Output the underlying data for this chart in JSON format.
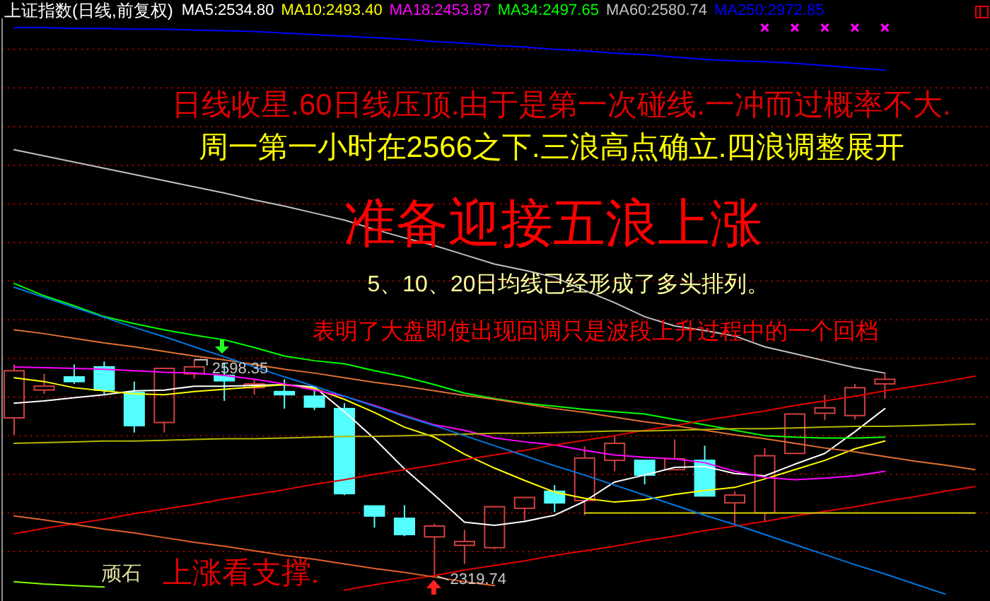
{
  "chart_data": {
    "type": "candlestick",
    "title": "上证指数(日线,前复权)",
    "categories": [
      null,
      null,
      null,
      null,
      null,
      null,
      null,
      null,
      null,
      null,
      null,
      null,
      null,
      null,
      null,
      null,
      null,
      null,
      null,
      null,
      null,
      null,
      null,
      null,
      null,
      null,
      null,
      null,
      null,
      null,
      null,
      null,
      null
    ],
    "ohlc": [
      [
        2523,
        2592,
        2501,
        2584
      ],
      [
        2559,
        2580,
        2554,
        2564
      ],
      [
        2576,
        2592,
        2567,
        2570
      ],
      [
        2589,
        2596,
        2554,
        2559
      ],
      [
        2556,
        2570,
        2504,
        2513
      ],
      [
        2517,
        2587,
        2504,
        2587
      ],
      [
        2580,
        2598.35,
        2574,
        2589
      ],
      [
        2578,
        2594,
        2545,
        2571
      ],
      [
        2562,
        2573,
        2553,
        2567
      ],
      [
        2557,
        2573,
        2535,
        2553
      ],
      [
        2551,
        2561,
        2533,
        2537
      ],
      [
        2535,
        2542,
        2423,
        2425
      ],
      [
        2409,
        2409,
        2381,
        2396
      ],
      [
        2393,
        2410,
        2370,
        2372
      ],
      [
        2369,
        2386,
        2319.74,
        2383
      ],
      [
        2358,
        2378,
        2334,
        2363
      ],
      [
        2355,
        2409,
        2353,
        2408
      ],
      [
        2406,
        2420,
        2390,
        2420
      ],
      [
        2428,
        2436,
        2401,
        2413
      ],
      [
        2416,
        2486,
        2397,
        2471
      ],
      [
        2468,
        2500,
        2454,
        2490
      ],
      [
        2468,
        2468,
        2437,
        2449
      ],
      [
        2456,
        2495,
        2456,
        2470
      ],
      [
        2468,
        2487,
        2422,
        2422
      ],
      [
        2413,
        2428,
        2386,
        2423
      ],
      [
        2400,
        2484,
        2389,
        2474
      ],
      [
        2477,
        2528,
        2477,
        2528
      ],
      [
        2529,
        2553,
        2520,
        2536
      ],
      [
        2526,
        2567,
        2521,
        2562
      ],
      [
        2567,
        2580,
        2548,
        2573
      ],
      null,
      null,
      null
    ],
    "colors": [
      "#d04040",
      "#d04040",
      "#54ffff",
      "#54ffff",
      "#54ffff",
      "#d04040",
      "#d04040",
      "#54ffff",
      "#d04040",
      "#54ffff",
      "#54ffff",
      "#54ffff",
      "#54ffff",
      "#54ffff",
      "#d04040",
      "#d04040",
      "#d04040",
      "#d04040",
      "#54ffff",
      "#d04040",
      "#d04040",
      "#54ffff",
      "#d04040",
      "#54ffff",
      "#d04040",
      "#d04040",
      "#d04040",
      "#d04040",
      "#d04040",
      "#d04040",
      null,
      null,
      null
    ],
    "series": [
      {
        "name": "MA5:2534.80",
        "type": "line",
        "color": "#ffffff",
        "values": [
          2542,
          2545,
          2549,
          2553,
          2558,
          2559,
          2564,
          2564,
          2565,
          2566,
          2563,
          2531,
          2496,
          2457,
          2423,
          2388,
          2384,
          2389,
          2397,
          2415,
          2440,
          2449,
          2459,
          2460,
          2451,
          2448,
          2463,
          2477,
          2505,
          2535,
          null,
          null,
          null
        ]
      },
      {
        "name": "MA10:2493.40",
        "type": "line",
        "color": "#ffff00",
        "values": [
          2575,
          2570,
          2562,
          2558,
          2554,
          2553,
          2557,
          2560,
          2563,
          2566,
          2561,
          2547,
          2530,
          2511,
          2498,
          2476,
          2458,
          2442,
          2427,
          2419,
          2414,
          2417,
          2424,
          2429,
          2433,
          2444,
          2456,
          2468,
          2483,
          2493,
          null,
          null,
          null
        ]
      },
      {
        "name": "MA18:2453.87",
        "type": "line",
        "color": "#ff00ff",
        "values": [
          2589,
          2588,
          2587,
          2586,
          2584,
          2582,
          2581,
          2578,
          2573,
          2567,
          2559,
          2551,
          2539,
          2526,
          2514,
          2507,
          2497,
          2492,
          2488,
          2481,
          2475,
          2472,
          2470,
          2465,
          2454,
          2446,
          2443,
          2445,
          2448,
          2454,
          null,
          null,
          null
        ]
      },
      {
        "name": "MA34:2497.65",
        "type": "line",
        "color": "#00ff00",
        "values": [
          2697,
          2681,
          2668,
          2654,
          2645,
          2637,
          2630,
          2624,
          2614,
          2603,
          2597,
          2593,
          2584,
          2576,
          2566,
          2555,
          2548,
          2542,
          2538,
          2534,
          2531,
          2528,
          2521,
          2514,
          2507,
          2500,
          2498,
          2497,
          2497,
          2498,
          null,
          null,
          null
        ]
      },
      {
        "name": "MA60:2580.74",
        "type": "line",
        "color": "#c0c0c0",
        "values": [
          2870,
          2862,
          2854,
          2846,
          2838,
          2830,
          2822,
          2814,
          2805,
          2797,
          2788,
          2779,
          2767,
          2756,
          2746,
          2734,
          2722,
          2714,
          2705,
          2688,
          2672,
          2654,
          2642,
          2636,
          2629,
          2615,
          2606,
          2597,
          2588,
          2581,
          null,
          null,
          null
        ]
      },
      {
        "name": "MA250:2972.85",
        "type": "line",
        "color": "#0000ff",
        "values": [
          3028,
          3028,
          3027,
          3027,
          3026,
          3026,
          3025,
          3024,
          3023,
          3021,
          3019,
          3017,
          3015,
          3013,
          3010,
          3008,
          3005,
          3003,
          3000,
          2998,
          2995,
          2993,
          2990,
          2987,
          2985,
          2984,
          2982,
          2979,
          2976,
          2973,
          null,
          null,
          null
        ]
      },
      {
        "type": "scatter",
        "color": "#ff00ff",
        "marker": "cross",
        "values": [
          null,
          null,
          null,
          null,
          null,
          null,
          null,
          null,
          null,
          null,
          null,
          null,
          null,
          null,
          null,
          null,
          null,
          null,
          null,
          null,
          null,
          null,
          null,
          null,
          null,
          3028,
          3028,
          3028,
          3028,
          3028,
          null,
          null,
          null
        ]
      },
      {
        "type": "line",
        "color": "#e00000",
        "values": [
          2373,
          2380,
          2386,
          2392,
          2399,
          2405,
          2411,
          2418,
          2424,
          2430,
          2437,
          2443,
          2450,
          2456,
          2462,
          2469,
          2475,
          2481,
          2488,
          2494,
          2500,
          2507,
          2513,
          2520,
          2526,
          2532,
          2539,
          2545,
          2551,
          2558,
          2564,
          2570,
          2577
        ]
      },
      {
        "type": "line",
        "color": "#e00000",
        "values": [
          null,
          null,
          null,
          null,
          null,
          null,
          null,
          null,
          null,
          null,
          null,
          2300,
          2307,
          2313,
          2319,
          2326,
          2332,
          2338,
          2345,
          2351,
          2357,
          2364,
          2370,
          2377,
          2383,
          2389,
          2396,
          2402,
          2408,
          2415,
          2421,
          2428,
          2434
        ]
      },
      {
        "type": "line",
        "color": "#e0602a",
        "values": [
          2396,
          2391,
          2385,
          2379,
          2374,
          2368,
          2362,
          2357,
          2351,
          2345,
          2340,
          2334,
          2328,
          2323,
          2317,
          2311,
          2306,
          null,
          null,
          null,
          null,
          null,
          null,
          null,
          null,
          null,
          null,
          null,
          null,
          null,
          null,
          null,
          null
        ]
      },
      {
        "type": "line",
        "color": "#e07030",
        "values": [
          2637,
          2632,
          2626,
          2620,
          2615,
          2609,
          2603,
          2598,
          2592,
          2586,
          2581,
          2575,
          2569,
          2564,
          2558,
          2552,
          2547,
          2541,
          2535,
          2530,
          2524,
          2518,
          2513,
          2507,
          2501,
          2496,
          2490,
          2484,
          2479,
          2473,
          2467,
          2462,
          2456
        ]
      },
      {
        "type": "line",
        "color": "#b4b400",
        "values": [
          2490,
          2491,
          2492,
          2493,
          2493,
          2494,
          2495,
          2496,
          2496,
          2497,
          2498,
          2499,
          2499,
          2500,
          2501,
          2502,
          2503,
          2503,
          2504,
          2505,
          2506,
          2506,
          2507,
          2508,
          2509,
          2509,
          2510,
          2511,
          2512,
          2512,
          2513,
          2514,
          2515
        ]
      },
      {
        "type": "line",
        "color": "#d0d000",
        "values": [
          null,
          null,
          null,
          null,
          null,
          null,
          null,
          null,
          null,
          null,
          null,
          null,
          null,
          null,
          null,
          null,
          null,
          null,
          null,
          2400,
          2400,
          2400,
          2400,
          2400,
          2400,
          2400,
          2400,
          2400,
          2400,
          2400,
          2400,
          2400,
          2400
        ]
      },
      {
        "type": "line",
        "color": "#0078e0",
        "values": [
          2692,
          2679,
          2666,
          2653,
          2640,
          2628,
          2615,
          2602,
          2589,
          2576,
          2564,
          2551,
          2538,
          2525,
          2513,
          2500,
          2487,
          2474,
          2461,
          2449,
          2436,
          2423,
          2410,
          2397,
          2385,
          2372,
          2359,
          2346,
          2333,
          2321,
          2308,
          2295,
          null
        ]
      },
      {
        "type": "line",
        "color": "#80ff00",
        "values": [
          2311,
          2308,
          2306,
          2304,
          null,
          null,
          null,
          null,
          null,
          null,
          null,
          null,
          null,
          null,
          null,
          null,
          null,
          null,
          null,
          null,
          null,
          null,
          null,
          null,
          null,
          null,
          null,
          null,
          null,
          null,
          null,
          null,
          null
        ]
      }
    ],
    "ylim": [
      2286,
      3040
    ],
    "yticks": [
      {
        "value": 2350,
        "label": null
      },
      {
        "value": 2400,
        "label": null
      },
      {
        "value": 2450,
        "label": null
      },
      {
        "value": 2500,
        "label": null
      },
      {
        "value": 2550,
        "label": null
      },
      {
        "value": 2600,
        "label": null
      },
      {
        "value": 2650,
        "label": null
      },
      {
        "value": 2700,
        "label": null
      },
      {
        "value": 2750,
        "label": null
      },
      {
        "value": 2800,
        "label": null
      },
      {
        "value": 2850,
        "label": null
      },
      {
        "value": 2900,
        "label": null
      },
      {
        "value": 2950,
        "label": null
      },
      {
        "value": 3000,
        "label": null
      }
    ],
    "grid": "y",
    "legend": "top",
    "annotations": [
      "日线收星.60日线压顶.由于是第一次碰线.一冲而过概率不大.",
      "周一第一小时在2566之下.三浪高点确立.四浪调整展开",
      "准备迎接五浪上涨",
      "5、10、20日均线已经形成了多头排列。",
      "表明了大盘即使出现回调只是波段上升过程中的一个回档",
      {
        "text": "2598.35",
        "y": 2598.35
      },
      {
        "text": "2319.74",
        "y": 2319.74
      },
      "顽石",
      "上涨看支撑."
    ]
  }
}
